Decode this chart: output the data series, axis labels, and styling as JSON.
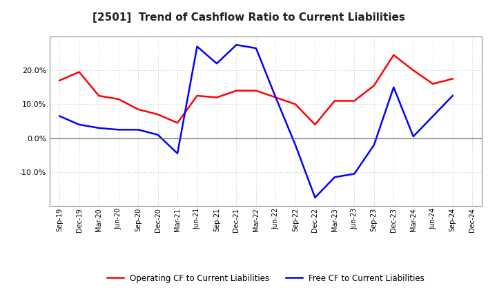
{
  "title": "[2501]  Trend of Cashflow Ratio to Current Liabilities",
  "x_labels": [
    "Sep-19",
    "Dec-19",
    "Mar-20",
    "Jun-20",
    "Sep-20",
    "Dec-20",
    "Mar-21",
    "Jun-21",
    "Sep-21",
    "Dec-21",
    "Mar-22",
    "Jun-22",
    "Sep-22",
    "Dec-22",
    "Mar-23",
    "Jun-23",
    "Sep-23",
    "Dec-23",
    "Mar-24",
    "Jun-24",
    "Sep-24",
    "Dec-24"
  ],
  "operating_cf": [
    17.0,
    19.5,
    12.5,
    11.5,
    8.5,
    7.0,
    4.5,
    12.5,
    12.0,
    14.0,
    14.0,
    12.0,
    10.0,
    4.0,
    11.0,
    11.0,
    15.5,
    24.5,
    20.0,
    16.0,
    17.5,
    null
  ],
  "free_cf": [
    6.5,
    4.0,
    3.0,
    2.5,
    2.5,
    1.0,
    -4.5,
    27.0,
    22.0,
    27.5,
    26.5,
    12.0,
    -2.0,
    -17.5,
    -11.5,
    -10.5,
    -2.0,
    15.0,
    0.5,
    6.5,
    12.5,
    null
  ],
  "operating_color": "#ff0000",
  "free_color": "#0000ff",
  "background_color": "#ffffff",
  "plot_bg_color": "#ffffff",
  "grid_color": "#aaaaaa",
  "ylim": [
    -20.0,
    30.0
  ],
  "yticks": [
    -10.0,
    0.0,
    10.0,
    20.0
  ],
  "legend_labels": [
    "Operating CF to Current Liabilities",
    "Free CF to Current Liabilities"
  ]
}
